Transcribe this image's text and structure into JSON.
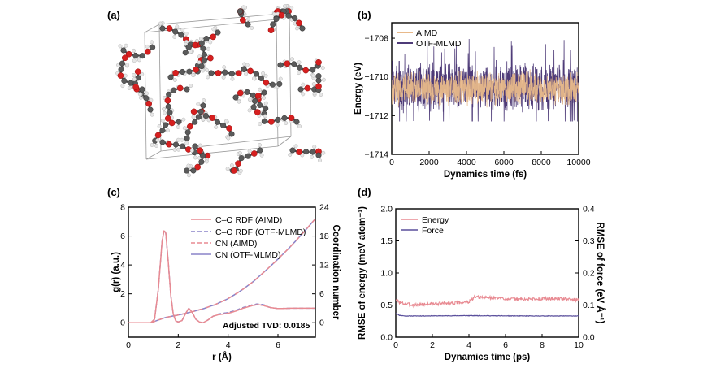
{
  "panels": {
    "a": {
      "label": "(a)"
    },
    "b": {
      "label": "(b)"
    },
    "c": {
      "label": "(c)"
    },
    "d": {
      "label": "(d)"
    }
  },
  "structure": {
    "description_colors": {
      "carbon": "#5a5a5a",
      "oxygen": "#d61f1f",
      "hydrogen": "#e6e6e6",
      "box": "#9a9a9a"
    }
  },
  "chart_data": [
    {
      "panel": "b",
      "type": "line",
      "xlabel": "Dynamics time (fs)",
      "ylabel": "Energy (eV)",
      "xlim": [
        0,
        10000
      ],
      "ylim": [
        -1714,
        -1707.2
      ],
      "xticks": [
        0,
        2000,
        4000,
        6000,
        8000,
        10000
      ],
      "yticks": [
        -1714,
        -1712,
        -1710,
        -1708
      ],
      "xtick_labels": [
        "0",
        "2000",
        "4000",
        "6000",
        "8000",
        "10000"
      ],
      "ytick_labels": [
        "−1714",
        "−1712",
        "−1710",
        "−1708"
      ],
      "legend_position": "top-left",
      "series": [
        {
          "name": "AIMD",
          "color": "#e8b98a",
          "mean": -1710.6,
          "amplitude": 1.0,
          "n_points": 1000
        },
        {
          "name": "OTF-MLMD",
          "color": "#4e3b78",
          "mean": -1710.5,
          "amplitude": 1.4,
          "n_points": 1000,
          "max": -1707.9,
          "min": -1712.3
        }
      ]
    },
    {
      "panel": "c",
      "type": "line",
      "xlabel": "r (Å)",
      "ylabel": "g(r) (a.u.)",
      "y2label": "Coordination number",
      "xlim": [
        0,
        7.5
      ],
      "ylim": [
        -1,
        8
      ],
      "y2lim": [
        -3,
        24
      ],
      "xticks": [
        0,
        2,
        4,
        6
      ],
      "yticks": [
        0,
        2,
        4,
        6,
        8
      ],
      "y2ticks": [
        0,
        6,
        12,
        18,
        24
      ],
      "xtick_labels": [
        "0",
        "2",
        "4",
        "6"
      ],
      "ytick_labels": [
        "0",
        "2",
        "4",
        "6",
        "8"
      ],
      "y2tick_labels": [
        "0",
        "6",
        "12",
        "18",
        "24"
      ],
      "legend_position": "top-right",
      "annotation": "Adjusted TVD: 0.0185",
      "rdf_points": {
        "r": [
          0,
          0.9,
          1.05,
          1.2,
          1.35,
          1.43,
          1.5,
          1.6,
          1.7,
          1.8,
          1.9,
          2.0,
          2.15,
          2.3,
          2.42,
          2.55,
          2.7,
          2.85,
          3.0,
          3.2,
          3.4,
          3.6,
          3.8,
          4.0,
          4.3,
          4.6,
          5.0,
          5.2,
          5.4,
          5.7,
          6.0,
          6.5,
          7.0,
          7.5
        ],
        "g": [
          0,
          0,
          0.25,
          2.3,
          5.6,
          6.4,
          6.2,
          4.2,
          1.9,
          0.6,
          0.12,
          0.05,
          0.15,
          0.65,
          1.0,
          0.75,
          0.25,
          0.05,
          0.0,
          0.2,
          0.45,
          0.55,
          0.6,
          0.65,
          0.8,
          1.0,
          1.2,
          1.25,
          1.2,
          1.05,
          0.98,
          1.0,
          1.0,
          1.0
        ]
      },
      "cn_points": {
        "r": [
          0.9,
          1.5,
          2.0,
          2.5,
          3.0,
          3.5,
          4.0,
          4.5,
          5.0,
          5.5,
          6.0,
          6.5,
          7.0,
          7.5
        ],
        "cn": [
          0,
          1.1,
          1.6,
          2.2,
          2.9,
          3.8,
          5.0,
          6.6,
          8.5,
          10.8,
          13.2,
          15.8,
          18.6,
          21.6
        ]
      },
      "series": [
        {
          "name": "C–O RDF (AIMD)",
          "color": "#e88a92",
          "style": "solid"
        },
        {
          "name": "C–O RDF (OTF-MLMD)",
          "color": "#8a83c8",
          "style": "dashed"
        },
        {
          "name": "CN (AIMD)",
          "color": "#e88a92",
          "style": "dashed"
        },
        {
          "name": "CN (OTF-MLMD)",
          "color": "#8a83c8",
          "style": "solid"
        }
      ]
    },
    {
      "panel": "d",
      "type": "line",
      "xlabel": "Dynamics time (ps)",
      "ylabel": "RMSE of energy (meV atom⁻¹)",
      "y2label": "RMSE of force (eV Å⁻¹)",
      "xlim": [
        0,
        10
      ],
      "ylim": [
        0,
        2.0
      ],
      "y2lim": [
        0,
        0.4
      ],
      "xticks": [
        0,
        2,
        4,
        6,
        8,
        10
      ],
      "yticks": [
        0.0,
        0.5,
        1.0,
        1.5,
        2.0
      ],
      "y2ticks": [
        0.0,
        0.1,
        0.2,
        0.3,
        0.4
      ],
      "xtick_labels": [
        "0",
        "2",
        "4",
        "6",
        "8",
        "10"
      ],
      "ytick_labels": [
        "0.0",
        "0.5",
        "1.0",
        "1.5",
        "2.0"
      ],
      "y2tick_labels": [
        "0.0",
        "0.1",
        "0.2",
        "0.3",
        "0.4"
      ],
      "legend_position": "top-left",
      "series": [
        {
          "name": "Energy",
          "color": "#e88a92",
          "x": [
            0,
            0.3,
            1,
            2,
            3,
            4,
            4.3,
            5,
            6,
            7,
            8,
            9,
            10
          ],
          "values": [
            0.58,
            0.53,
            0.5,
            0.52,
            0.53,
            0.55,
            0.62,
            0.62,
            0.6,
            0.59,
            0.6,
            0.6,
            0.58
          ]
        },
        {
          "name": "Force",
          "color": "#5a4f9c",
          "x": [
            0,
            0.2,
            0.5,
            1,
            4,
            7,
            10
          ],
          "values": [
            0.075,
            0.068,
            0.066,
            0.066,
            0.067,
            0.066,
            0.066
          ]
        }
      ]
    }
  ]
}
